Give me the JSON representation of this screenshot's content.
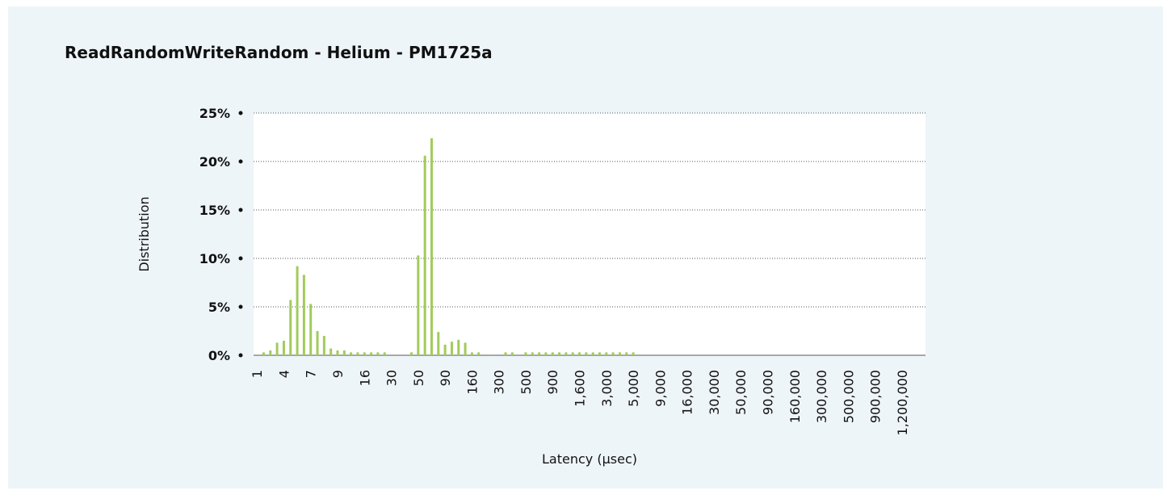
{
  "chart_data": {
    "type": "bar",
    "title": "ReadRandomWriteRandom - Helium - PM1725a",
    "x_label": "Latency (µsec)",
    "y_label": "Distribution",
    "color": "#a2cb5b",
    "grid": true,
    "ylim": [
      0,
      25
    ],
    "yticks": [
      {
        "value": 0,
        "label": "0%"
      },
      {
        "value": 5,
        "label": "5%"
      },
      {
        "value": 10,
        "label": "10%"
      },
      {
        "value": 15,
        "label": "15%"
      },
      {
        "value": 20,
        "label": "20%"
      },
      {
        "value": 25,
        "label": "25%"
      }
    ],
    "categories": [
      "1",
      null,
      null,
      null,
      "4",
      null,
      null,
      null,
      "7",
      null,
      null,
      null,
      "9",
      null,
      null,
      null,
      "16",
      null,
      null,
      null,
      "30",
      null,
      null,
      null,
      "50",
      null,
      null,
      null,
      "90",
      null,
      null,
      null,
      "160",
      null,
      null,
      null,
      "300",
      null,
      null,
      null,
      "500",
      null,
      null,
      null,
      "900",
      null,
      null,
      null,
      "1,600",
      null,
      null,
      null,
      "3,000",
      null,
      null,
      null,
      "5,000",
      null,
      null,
      null,
      "9,000",
      null,
      null,
      null,
      "16,000",
      null,
      null,
      null,
      "30,000",
      null,
      null,
      null,
      "50,000",
      null,
      null,
      null,
      "90,000",
      null,
      null,
      null,
      "160,000",
      null,
      null,
      null,
      "300,000",
      null,
      null,
      null,
      "500,000",
      null,
      null,
      null,
      "900,000",
      null,
      null,
      null,
      "1,200,000",
      null,
      null,
      null
    ],
    "values": [
      0,
      0.3,
      0.5,
      1.3,
      1.5,
      5.7,
      9.2,
      8.3,
      5.3,
      2.5,
      2.0,
      0.7,
      0.5,
      0.5,
      0.3,
      0.3,
      0.3,
      0.3,
      0.3,
      0.3,
      0,
      0,
      0,
      0.3,
      10.3,
      20.6,
      22.4,
      2.4,
      1.1,
      1.4,
      1.6,
      1.3,
      0.3,
      0.3,
      0,
      0,
      0,
      0.3,
      0.3,
      0,
      0.3,
      0.3,
      0.3,
      0.3,
      0.3,
      0.3,
      0.3,
      0.3,
      0.3,
      0.3,
      0.3,
      0.3,
      0.3,
      0.3,
      0.3,
      0.3,
      0.3,
      0,
      0,
      0,
      0,
      0,
      0,
      0,
      0,
      0,
      0,
      0,
      0,
      0,
      0,
      0,
      0,
      0,
      0,
      0,
      0,
      0,
      0,
      0,
      0,
      0,
      0,
      0,
      0,
      0,
      0,
      0,
      0,
      0,
      0,
      0,
      0,
      0,
      0,
      0,
      0,
      0,
      0,
      0
    ]
  }
}
